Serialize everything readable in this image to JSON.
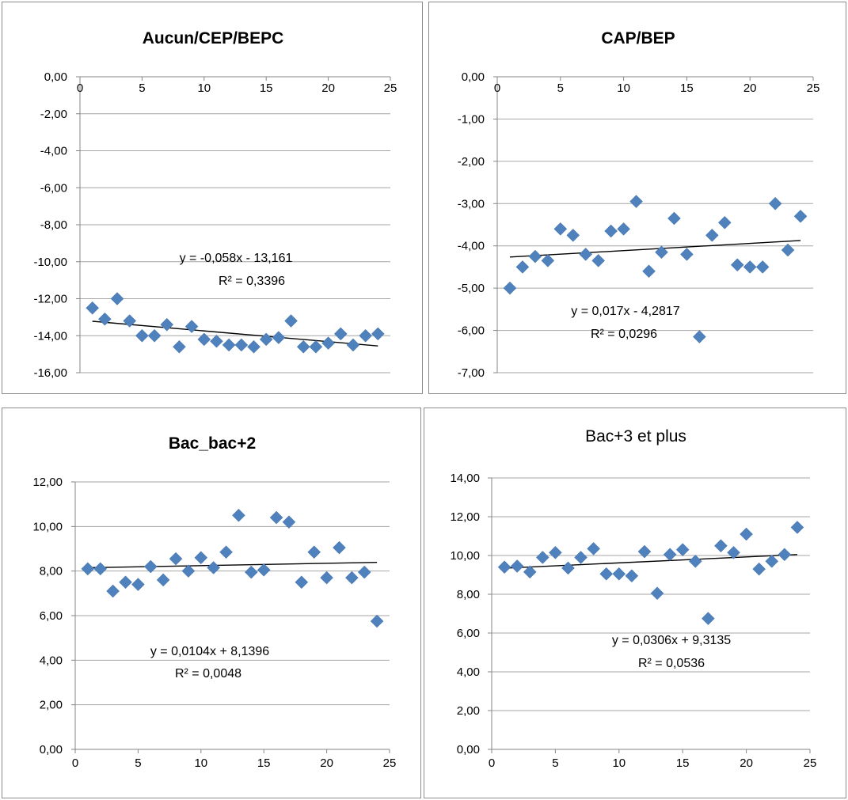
{
  "chart_data": [
    {
      "type": "scatter",
      "title": "Aucun/CEP/BEPC",
      "title_bold": true,
      "xlim": [
        0,
        25
      ],
      "xticks": [
        0,
        5,
        10,
        15,
        20,
        25
      ],
      "xtick_labels": [
        "0",
        "5",
        "10",
        "15",
        "20",
        "25"
      ],
      "ylim": [
        -16,
        0
      ],
      "yticks": [
        0,
        -2,
        -4,
        -6,
        -8,
        -10,
        -12,
        -14,
        -16
      ],
      "ytick_labels": [
        "0,00",
        "-2,00",
        "-4,00",
        "-6,00",
        "-8,00",
        "-10,00",
        "-12,00",
        "-14,00",
        "-16,00"
      ],
      "x_axis_position": "top",
      "x": [
        1,
        2,
        3,
        4,
        5,
        6,
        7,
        8,
        9,
        10,
        11,
        12,
        13,
        14,
        15,
        16,
        17,
        18,
        19,
        20,
        21,
        22,
        23,
        24
      ],
      "y": [
        -12.5,
        -13.1,
        -12.0,
        -13.2,
        -14.0,
        -14.0,
        -13.4,
        -14.6,
        -13.5,
        -14.2,
        -14.3,
        -14.5,
        -14.5,
        -14.6,
        -14.2,
        -14.1,
        -13.2,
        -14.6,
        -14.6,
        -14.4,
        -13.9,
        -14.5,
        -14.0,
        -13.9
      ],
      "trendline": {
        "slope": -0.058,
        "intercept": -13.161,
        "x_range": [
          1,
          24
        ]
      },
      "equation": "y = -0,058x - 13,161",
      "r_squared": "R² = 0,3396",
      "marker": "diamond",
      "marker_color": "#4F81BD"
    },
    {
      "type": "scatter",
      "title": "CAP/BEP",
      "title_bold": true,
      "xlim": [
        0,
        25
      ],
      "xticks": [
        0,
        5,
        10,
        15,
        20,
        25
      ],
      "xtick_labels": [
        "0",
        "5",
        "10",
        "15",
        "20",
        "25"
      ],
      "ylim": [
        -7,
        0
      ],
      "yticks": [
        0,
        -1,
        -2,
        -3,
        -4,
        -5,
        -6,
        -7
      ],
      "ytick_labels": [
        "0,00",
        "-1,00",
        "-2,00",
        "-3,00",
        "-4,00",
        "-5,00",
        "-6,00",
        "-7,00"
      ],
      "x_axis_position": "top",
      "x": [
        1,
        2,
        3,
        4,
        5,
        6,
        7,
        8,
        9,
        10,
        11,
        12,
        13,
        14,
        15,
        16,
        17,
        18,
        19,
        20,
        21,
        22,
        23,
        24
      ],
      "y": [
        -5.0,
        -4.5,
        -4.25,
        -4.35,
        -3.6,
        -3.75,
        -4.2,
        -4.35,
        -3.65,
        -3.6,
        -2.95,
        -4.6,
        -4.15,
        -3.35,
        -4.2,
        -6.15,
        -3.75,
        -3.45,
        -4.45,
        -4.5,
        -4.5,
        -3.0,
        -4.1,
        -3.3
      ],
      "trendline": {
        "slope": 0.017,
        "intercept": -4.2817,
        "x_range": [
          1,
          24
        ]
      },
      "equation": "y = 0,017x - 4,2817",
      "r_squared": "R² = 0,0296",
      "marker": "diamond",
      "marker_color": "#4F81BD"
    },
    {
      "type": "scatter",
      "title": "Bac_bac+2",
      "title_bold": true,
      "xlim": [
        0,
        25
      ],
      "xticks": [
        0,
        5,
        10,
        15,
        20,
        25
      ],
      "xtick_labels": [
        "0",
        "5",
        "10",
        "15",
        "20",
        "25"
      ],
      "ylim": [
        0,
        12
      ],
      "yticks": [
        0,
        2,
        4,
        6,
        8,
        10,
        12
      ],
      "ytick_labels": [
        "0,00",
        "2,00",
        "4,00",
        "6,00",
        "8,00",
        "10,00",
        "12,00"
      ],
      "x_axis_position": "bottom",
      "x": [
        1,
        2,
        3,
        4,
        5,
        6,
        7,
        8,
        9,
        10,
        11,
        12,
        13,
        14,
        15,
        16,
        17,
        18,
        19,
        20,
        21,
        22,
        23,
        24
      ],
      "y": [
        8.1,
        8.1,
        7.1,
        7.5,
        7.4,
        8.2,
        7.6,
        8.55,
        8.0,
        8.6,
        8.15,
        8.85,
        10.5,
        7.95,
        8.05,
        10.4,
        10.2,
        7.5,
        8.85,
        7.7,
        9.05,
        7.7,
        7.95,
        5.75
      ],
      "trendline": {
        "slope": 0.0104,
        "intercept": 8.1396,
        "x_range": [
          1,
          24
        ]
      },
      "equation": "y = 0,0104x + 8,1396",
      "r_squared": "R² = 0,0048",
      "marker": "diamond",
      "marker_color": "#4F81BD"
    },
    {
      "type": "scatter",
      "title": "Bac+3 et plus",
      "title_bold": false,
      "xlim": [
        0,
        25
      ],
      "xticks": [
        0,
        5,
        10,
        15,
        20,
        25
      ],
      "xtick_labels": [
        "0",
        "5",
        "10",
        "15",
        "20",
        "25"
      ],
      "ylim": [
        0,
        14
      ],
      "yticks": [
        0,
        2,
        4,
        6,
        8,
        10,
        12,
        14
      ],
      "ytick_labels": [
        "0,00",
        "2,00",
        "4,00",
        "6,00",
        "8,00",
        "10,00",
        "12,00",
        "14,00"
      ],
      "x_axis_position": "bottom",
      "x": [
        1,
        2,
        3,
        4,
        5,
        6,
        7,
        8,
        9,
        10,
        11,
        12,
        13,
        14,
        15,
        16,
        17,
        18,
        19,
        20,
        21,
        22,
        23,
        24
      ],
      "y": [
        9.4,
        9.45,
        9.15,
        9.9,
        10.15,
        9.35,
        9.9,
        10.35,
        9.05,
        9.05,
        8.95,
        10.2,
        8.05,
        10.05,
        10.3,
        9.7,
        6.75,
        10.5,
        10.15,
        11.1,
        9.3,
        9.7,
        10.05,
        11.45
      ],
      "trendline": {
        "slope": 0.0306,
        "intercept": 9.3135,
        "x_range": [
          1,
          24
        ]
      },
      "equation": "y = 0,0306x + 9,3135",
      "r_squared": "R² = 0,0536",
      "marker": "diamond",
      "marker_color": "#4F81BD"
    }
  ]
}
